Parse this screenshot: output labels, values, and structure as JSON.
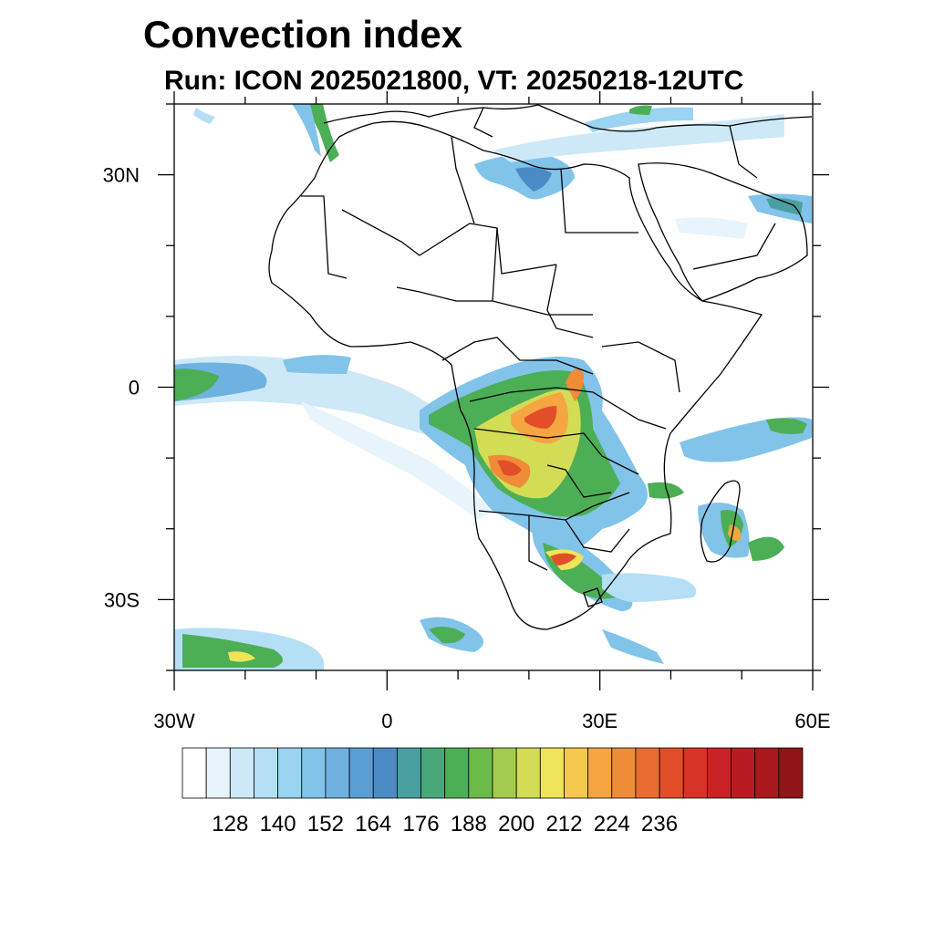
{
  "title": "Convection index",
  "subtitle": "Run: ICON 2025021800,  VT: 20250218-12UTC",
  "map": {
    "lon_range": [
      -30,
      60
    ],
    "lat_range": [
      -40,
      40
    ],
    "lat_ticks": [
      {
        "value": 30,
        "label": "30N"
      },
      {
        "value": 0,
        "label": "0"
      },
      {
        "value": -30,
        "label": "30S"
      }
    ],
    "lon_ticks": [
      {
        "value": -30,
        "label": "30W"
      },
      {
        "value": 0,
        "label": "0"
      },
      {
        "value": 30,
        "label": "30E"
      },
      {
        "value": 60,
        "label": "60E"
      }
    ],
    "minor_lat_ticks": [
      40,
      20,
      10,
      -10,
      -20,
      -40
    ],
    "minor_lon_ticks": [
      -20,
      -10,
      10,
      20,
      40,
      50
    ]
  },
  "colorbar": {
    "colors": [
      "#ffffff",
      "#e8f4fb",
      "#cde9f7",
      "#b4dff5",
      "#9bd3f2",
      "#82c3ea",
      "#6fb2e2",
      "#5a9ed6",
      "#4a8bc6",
      "#4aa0a0",
      "#48a878",
      "#4caf55",
      "#6cba4a",
      "#a3cc4e",
      "#d2dd55",
      "#f0e45a",
      "#f7c84e",
      "#f5a641",
      "#f08c38",
      "#ea6b2f",
      "#e24d2a",
      "#d83327",
      "#c92227",
      "#b81b22",
      "#a8181d",
      "#8f1518"
    ],
    "labels": [
      "128",
      "140",
      "152",
      "164",
      "176",
      "188",
      "200",
      "212",
      "224",
      "236"
    ]
  }
}
